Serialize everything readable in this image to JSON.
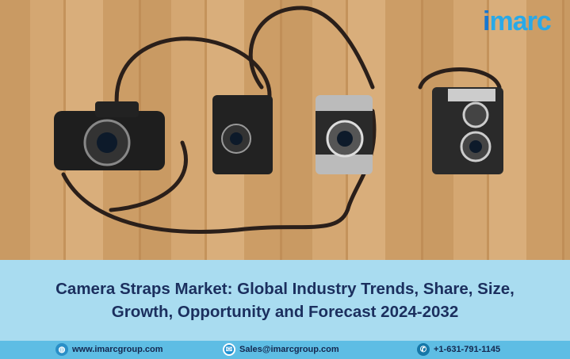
{
  "logo": {
    "text": "imarc"
  },
  "title": "Camera Straps Market: Global Industry Trends, Share, Size, Growth, Opportunity and Forecast 2024-2032",
  "footer": {
    "website": {
      "icon": "globe-icon",
      "text": "www.imarcgroup.com"
    },
    "email": {
      "icon": "mail-icon",
      "text": "Sales@imarcgroup.com"
    },
    "phone": {
      "icon": "phone-icon",
      "text": "+1-631-791-1145"
    }
  },
  "colors": {
    "band": "#a9dcf0",
    "footer": "#5ebde4",
    "title": "#1b2f5e",
    "logo": "#29a9e8"
  }
}
